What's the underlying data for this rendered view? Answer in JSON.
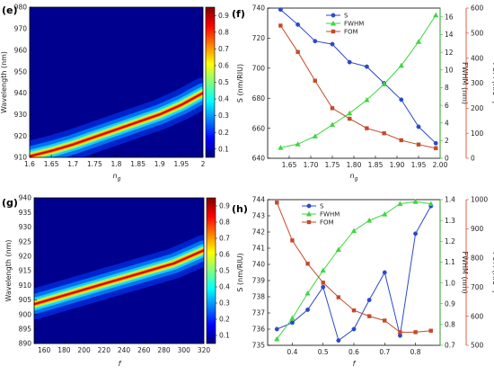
{
  "colors": {
    "s_series": "#2b49c9",
    "fwhm_series": "#3fd63f",
    "fom_series": "#c44a2b",
    "s_axis": "#2b49c9",
    "fwhm_axis": "#31b831",
    "fom_axis": "#d8371e",
    "jet_colormap": [
      "#00007f",
      "#0000ff",
      "#007fff",
      "#00ffff",
      "#7fff7f",
      "#ffff00",
      "#ff7f00",
      "#ff0000",
      "#7f0000"
    ]
  },
  "chart_data": [
    {
      "panel": "(e)",
      "type": "heatmap",
      "xlabel": "n_g",
      "xlabel_main": "n",
      "xlabel_sub": "g",
      "ylabel": "Wavelength (nm)",
      "xlim": [
        1.6,
        2.0
      ],
      "ylim": [
        910,
        980
      ],
      "xticks": [
        "1.6",
        "1.65",
        "1.7",
        "1.75",
        "1.8",
        "1.85",
        "1.9",
        "1.95",
        "2"
      ],
      "yticks": [
        "910",
        "920",
        "930",
        "940",
        "950",
        "960",
        "970",
        "980"
      ],
      "colorbar_ticks": [
        "0.1",
        "0.2",
        "0.3",
        "0.4",
        "0.5",
        "0.6",
        "0.7",
        "0.8",
        "0.9"
      ],
      "colorbar_range": [
        0.05,
        0.95
      ],
      "ridge": {
        "x": [
          1.6,
          1.65,
          1.7,
          1.75,
          1.8,
          1.85,
          1.9,
          1.95,
          2.0
        ],
        "y": [
          910.5,
          913,
          916,
          919.5,
          923,
          926.5,
          930,
          934.5,
          940
        ]
      }
    },
    {
      "panel": "(f)",
      "type": "line",
      "xlabel": "n_g",
      "xlabel_main": "n",
      "xlabel_sub": "g",
      "ylabel_left": "S (nm/RIU)",
      "ylabel_mid": "FWHM (nm)",
      "ylabel_right_main": "FOM (RIU",
      "ylabel_right_sup": "-1",
      "ylabel_right_end": ")",
      "xlim": [
        1.6,
        2.0
      ],
      "xticks": [
        "1.65",
        "1.70",
        "1.75",
        "1.80",
        "1.85",
        "1.90",
        "1.95",
        "2.00"
      ],
      "y_left_lim": [
        640,
        740
      ],
      "y_left_ticks": [
        "640",
        "660",
        "680",
        "700",
        "720",
        "740"
      ],
      "y_mid_lim": [
        0,
        17
      ],
      "y_mid_ticks": [
        "0",
        "2",
        "4",
        "6",
        "8",
        "10",
        "12",
        "14",
        "16"
      ],
      "y_right_lim": [
        0,
        600
      ],
      "y_right_ticks": [
        "0",
        "100",
        "200",
        "300",
        "400",
        "500",
        "600"
      ],
      "legend_position": "top-center",
      "x": [
        1.63,
        1.67,
        1.71,
        1.75,
        1.79,
        1.83,
        1.87,
        1.91,
        1.95,
        1.99
      ],
      "series": [
        {
          "name": "S",
          "axis": "left",
          "marker": "circle",
          "values": [
            739,
            729,
            718,
            716,
            704,
            701,
            690,
            679,
            661,
            650
          ]
        },
        {
          "name": "FWHM",
          "axis": "mid",
          "marker": "triangle",
          "values": [
            1.2,
            1.6,
            2.5,
            3.8,
            5.1,
            6.6,
            8.4,
            10.5,
            13.2,
            16.2
          ]
        },
        {
          "name": "FOM",
          "axis": "right",
          "marker": "square",
          "values": [
            530,
            425,
            310,
            200,
            158,
            120,
            100,
            72,
            55,
            40
          ]
        }
      ]
    },
    {
      "panel": "(g)",
      "type": "heatmap",
      "xlabel": "f",
      "ylabel": "Wavelength (nm)",
      "xlim": [
        150,
        320
      ],
      "ylim": [
        890,
        940
      ],
      "xticks": [
        "160",
        "180",
        "200",
        "220",
        "240",
        "260",
        "280",
        "300",
        "320"
      ],
      "yticks": [
        "890",
        "895",
        "900",
        "905",
        "910",
        "915",
        "920",
        "925",
        "930",
        "935",
        "940"
      ],
      "colorbar_ticks": [
        "0.1",
        "0.2",
        "0.3",
        "0.4",
        "0.5",
        "0.6",
        "0.7",
        "0.8",
        "0.9"
      ],
      "colorbar_range": [
        0.05,
        0.95
      ],
      "ridge": {
        "x": [
          150,
          170,
          190,
          210,
          230,
          250,
          270,
          290,
          310,
          320
        ],
        "y": [
          903.5,
          905.5,
          907.5,
          909.5,
          911.5,
          913.5,
          915.5,
          917.5,
          920.5,
          922
        ]
      }
    },
    {
      "panel": "(h)",
      "type": "line",
      "xlabel": "f",
      "ylabel_left": "S (nm/RIU)",
      "ylabel_mid": "FWHM (nm)",
      "ylabel_right_main": "FOM (RIU",
      "ylabel_right_sup": "-1",
      "ylabel_right_end": ")",
      "xlim": [
        0.32,
        0.88
      ],
      "xticks": [
        "0.4",
        "0.5",
        "0.6",
        "0.7",
        "0.8"
      ],
      "y_left_lim": [
        735,
        744
      ],
      "y_left_ticks": [
        "735",
        "736",
        "737",
        "738",
        "739",
        "740",
        "741",
        "742",
        "743",
        "744"
      ],
      "y_mid_lim": [
        0.7,
        1.4
      ],
      "y_mid_ticks": [
        "0.7",
        "0.8",
        "0.9",
        "1.0",
        "1.1",
        "1.2",
        "1.3",
        "1.4"
      ],
      "y_right_lim": [
        500,
        1000
      ],
      "y_right_ticks": [
        "500",
        "600",
        "700",
        "800",
        "900",
        "1000"
      ],
      "legend_position": "top-left",
      "x": [
        0.35,
        0.4,
        0.45,
        0.5,
        0.55,
        0.6,
        0.65,
        0.7,
        0.75,
        0.8,
        0.85
      ],
      "series": [
        {
          "name": "S",
          "axis": "left",
          "marker": "circle",
          "values": [
            736.0,
            736.4,
            737.2,
            738.6,
            735.3,
            736.0,
            737.8,
            739.5,
            735.6,
            741.9,
            743.6
          ]
        },
        {
          "name": "FWHM",
          "axis": "mid",
          "marker": "triangle",
          "values": [
            0.73,
            0.83,
            0.95,
            1.06,
            1.16,
            1.25,
            1.3,
            1.33,
            1.38,
            1.39,
            1.38
          ]
        },
        {
          "name": "FOM",
          "axis": "right",
          "marker": "square",
          "values": [
            990,
            860,
            780,
            715,
            665,
            620,
            600,
            585,
            545,
            545,
            550
          ]
        }
      ]
    }
  ]
}
